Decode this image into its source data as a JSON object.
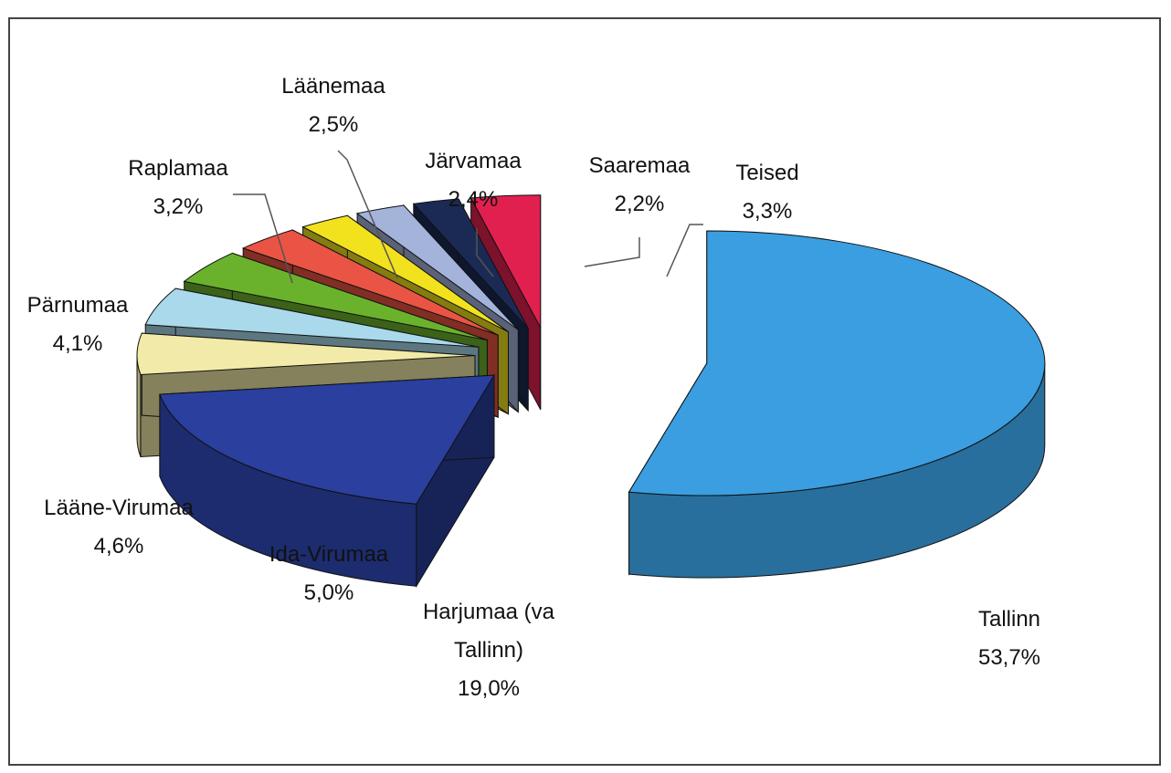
{
  "chart_data": {
    "type": "pie",
    "categories": [
      "Tallinn",
      "Harjumaa (va Tallinn)",
      "Ida-Virumaa",
      "Lääne-Virumaa",
      "Pärnumaa",
      "Raplamaa",
      "Läänemaa",
      "Järvamaa",
      "Saaremaa",
      "Teised"
    ],
    "values": [
      53.7,
      19.0,
      5.0,
      4.6,
      4.1,
      3.2,
      2.5,
      2.4,
      2.2,
      3.3
    ],
    "value_labels": [
      "53,7%",
      "19,0%",
      "5,0%",
      "4,6%",
      "4,1%",
      "3,2%",
      "2,5%",
      "2,4%",
      "2,2%",
      "3,3%"
    ],
    "colors": [
      "#3a9ee0",
      "#2a3f9e",
      "#f2eaa8",
      "#a9d9ea",
      "#6bb22c",
      "#ea5444",
      "#f2e21e",
      "#a3b3da",
      "#1b2a55",
      "#e2204f"
    ]
  }
}
